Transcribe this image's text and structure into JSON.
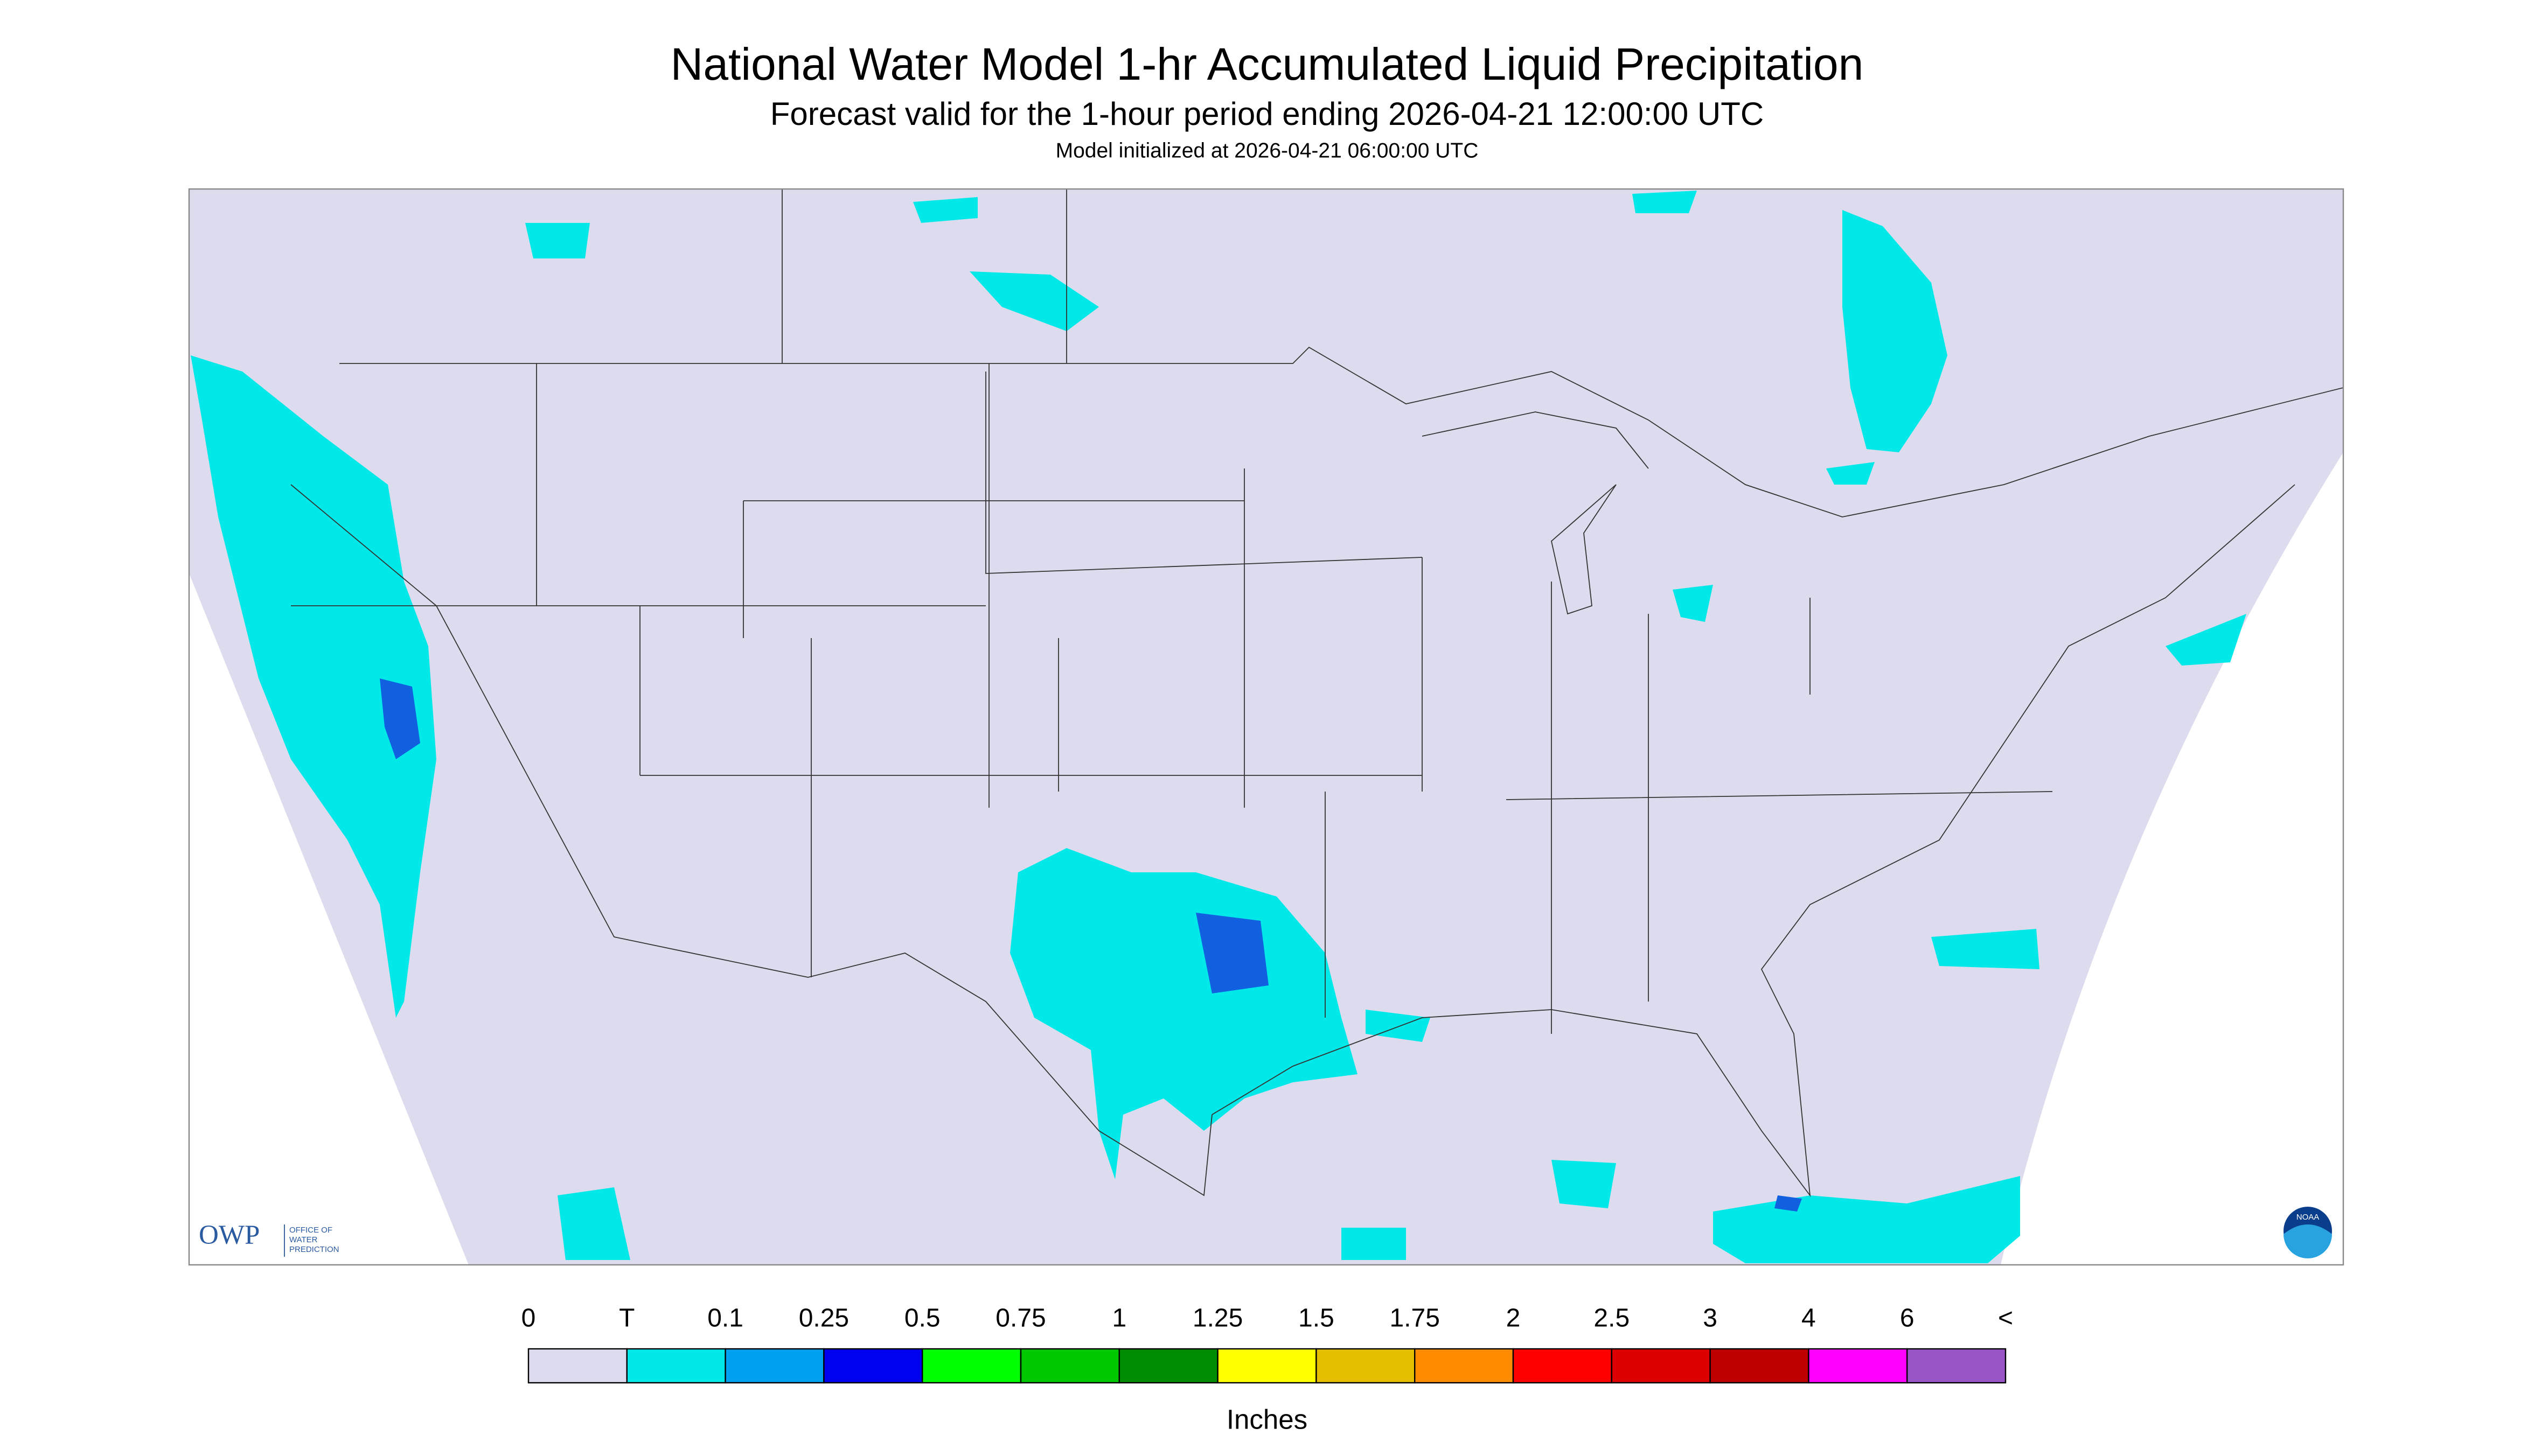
{
  "header": {
    "title": "National Water Model 1-hr Accumulated Liquid Precipitation",
    "subtitle": "Forecast valid for the 1-hour period ending 2026-04-21 12:00:00 UTC",
    "note": "Model initialized at 2026-04-21 06:00:00 UTC"
  },
  "logos": {
    "owp": "OWP",
    "owp_text": [
      "OFFICE OF",
      "WATER",
      "PREDICTION"
    ],
    "noaa": "NOAA"
  },
  "legend": {
    "labels": [
      "0",
      "T",
      "0.1",
      "0.25",
      "0.5",
      "0.75",
      "1",
      "1.25",
      "1.5",
      "1.75",
      "2",
      "2.5",
      "3",
      "4",
      "6",
      "<"
    ],
    "colors": [
      "#dcdcee",
      "#00e8e8",
      "#00a0f0",
      "#0000f0",
      "#00ff00",
      "#00c800",
      "#008c00",
      "#ffff00",
      "#e6be00",
      "#ff8c00",
      "#ff0000",
      "#dc0000",
      "#be0000",
      "#ff00ff",
      "#9955c8"
    ],
    "unit": "Inches"
  }
}
